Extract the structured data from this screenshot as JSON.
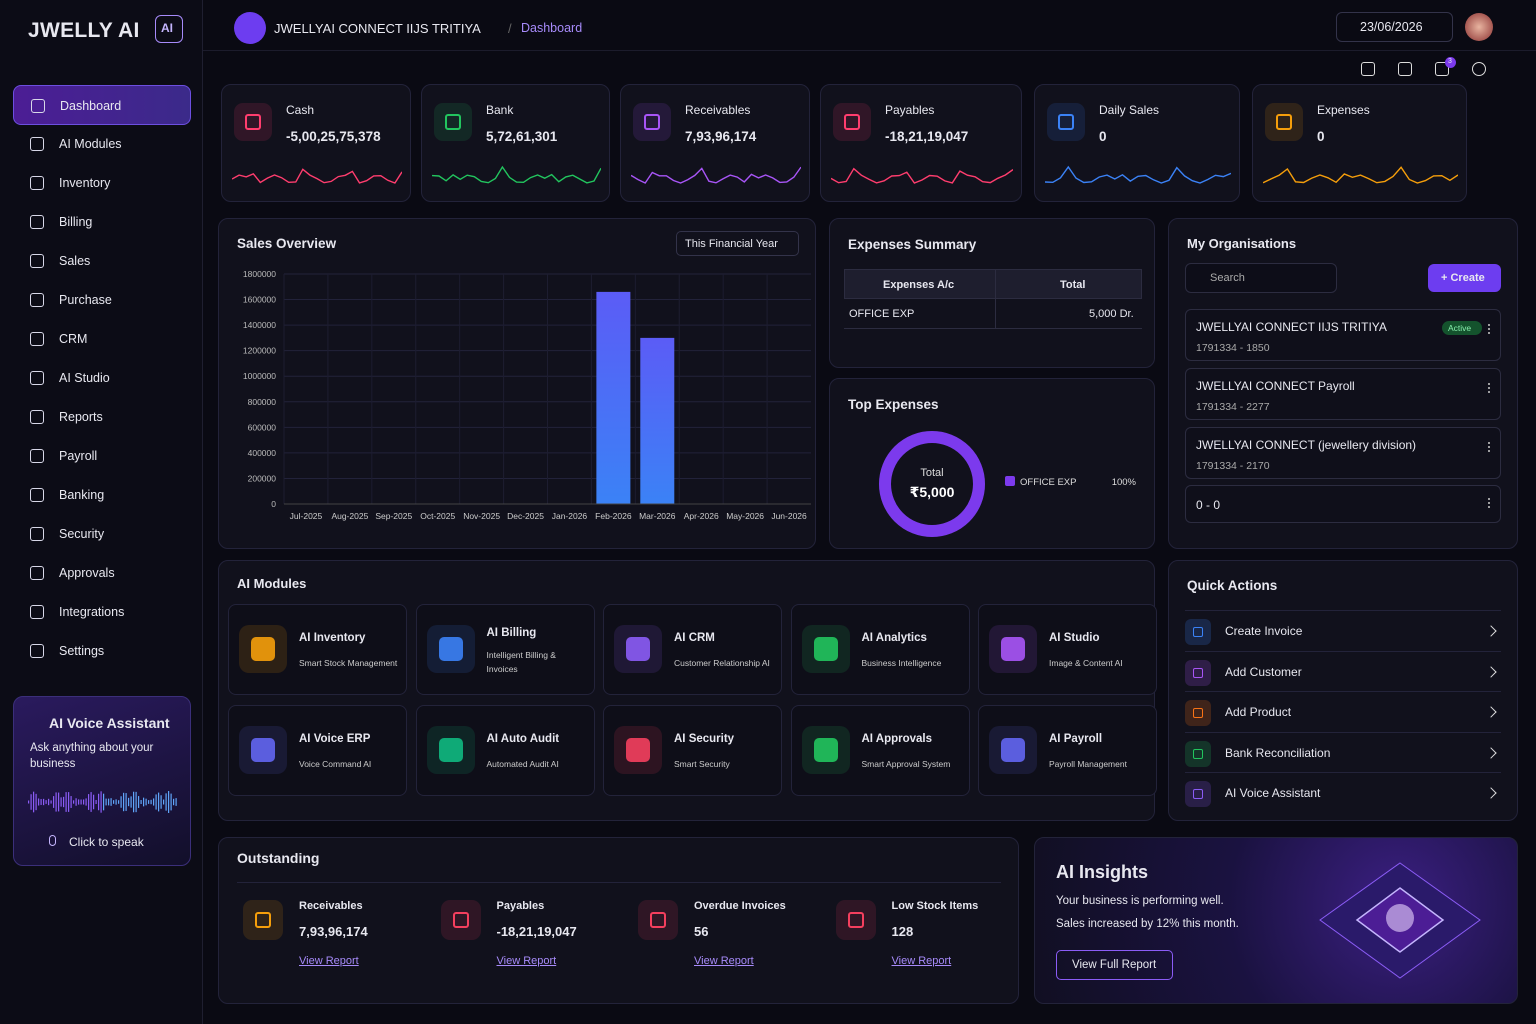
{
  "brand": {
    "name": "JWELLY AI",
    "badge": "AI"
  },
  "header": {
    "org": "JWELLYAI CONNECT IIJS TRITIYA",
    "separator": "/",
    "breadcrumb": "Dashboard",
    "date": "23/06/2026",
    "notifications": "3"
  },
  "sidebar": {
    "items": [
      "Dashboard",
      "AI Modules",
      "Inventory",
      "Billing",
      "Sales",
      "Purchase",
      "CRM",
      "AI Studio",
      "Reports",
      "Payroll",
      "Banking",
      "Security",
      "Approvals",
      "Integrations",
      "Settings"
    ]
  },
  "stats": [
    {
      "label": "Cash",
      "value": "-5,00,25,75,378",
      "color": "#ff3d6e"
    },
    {
      "label": "Bank",
      "value": "5,72,61,301",
      "color": "#22c55e"
    },
    {
      "label": "Receivables",
      "value": "7,93,96,174",
      "color": "#a855f7"
    },
    {
      "label": "Payables",
      "value": "-18,21,19,047",
      "color": "#ff3d6e"
    },
    {
      "label": "Daily Sales",
      "value": "0",
      "color": "#3b82f6"
    },
    {
      "label": "Expenses",
      "value": "0",
      "color": "#f59e0b"
    }
  ],
  "chart_data": [
    {
      "type": "bar",
      "title": "Sales Overview",
      "filter": "This Financial Year",
      "categories": [
        "Jul-2025",
        "Aug-2025",
        "Sep-2025",
        "Oct-2025",
        "Nov-2025",
        "Dec-2025",
        "Jan-2026",
        "Feb-2026",
        "Mar-2026",
        "Apr-2026",
        "May-2026",
        "Jun-2026"
      ],
      "values": [
        0,
        0,
        0,
        0,
        0,
        0,
        0,
        1660000,
        1300000,
        0,
        0,
        0
      ],
      "color": "#5b5cf6",
      "ylim": [
        0,
        1800000
      ],
      "yticks": [
        0,
        200000,
        400000,
        600000,
        800000,
        1000000,
        1200000,
        1400000,
        1600000,
        1800000
      ],
      "grid": true
    },
    {
      "type": "pie",
      "title": "Top Expenses",
      "center_label": "Total",
      "center_value": "₹5,000",
      "categories": [
        "OFFICE EXP"
      ],
      "values": [
        100
      ],
      "value_labels": [
        "100%"
      ],
      "colors": [
        "#7c3aed"
      ]
    }
  ],
  "expenses_summary": {
    "title": "Expenses Summary",
    "columns": [
      "Expenses A/c",
      "Total"
    ],
    "rows": [
      [
        "OFFICE EXP",
        "5,000 Dr."
      ]
    ]
  },
  "organisations": {
    "title": "My Organisations",
    "search": "Search",
    "create": "+ Create",
    "items": [
      {
        "name": "JWELLYAI CONNECT IIJS TRITIYA",
        "code": "1791334 - 1850",
        "status": "Active"
      },
      {
        "name": "JWELLYAI CONNECT Payroll",
        "code": "1791334 - 2277"
      },
      {
        "name": "JWELLYAI CONNECT (jewellery division)",
        "code": "1791334 - 2170"
      },
      {
        "name": "0 - 0"
      }
    ]
  },
  "ai_modules": {
    "title": "AI Modules",
    "items": [
      {
        "name": "AI Inventory",
        "desc": "Smart Stock Management",
        "color": "#f59e0b"
      },
      {
        "name": "AI Billing",
        "desc": "Intelligent Billing & Invoices",
        "color": "#3b82f6"
      },
      {
        "name": "AI CRM",
        "desc": "Customer Relationship AI",
        "color": "#8b5cf6"
      },
      {
        "name": "AI Analytics",
        "desc": "Business Intelligence",
        "color": "#22c55e"
      },
      {
        "name": "AI Studio",
        "desc": "Image & Content AI",
        "color": "#a855f7"
      },
      {
        "name": "AI Voice ERP",
        "desc": "Voice Command AI",
        "color": "#6366f1"
      },
      {
        "name": "AI Auto Audit",
        "desc": "Automated Audit AI",
        "color": "#10b981"
      },
      {
        "name": "AI Security",
        "desc": "Smart Security",
        "color": "#f43f5e"
      },
      {
        "name": "AI Approvals",
        "desc": "Smart Approval System",
        "color": "#22c55e"
      },
      {
        "name": "AI Payroll",
        "desc": "Payroll Management",
        "color": "#6366f1"
      }
    ]
  },
  "quick_actions": {
    "title": "Quick Actions",
    "items": [
      {
        "name": "Create Invoice",
        "color": "#3b82f6"
      },
      {
        "name": "Add Customer",
        "color": "#a855f7"
      },
      {
        "name": "Add Product",
        "color": "#f97316"
      },
      {
        "name": "Bank Reconciliation",
        "color": "#22c55e"
      },
      {
        "name": "AI Voice Assistant",
        "color": "#8b5cf6"
      }
    ]
  },
  "outstanding": {
    "title": "Outstanding",
    "items": [
      {
        "label": "Receivables",
        "value": "7,93,96,174",
        "link": "View Report",
        "color": "#f59e0b"
      },
      {
        "label": "Payables",
        "value": "-18,21,19,047",
        "link": "View Report",
        "color": "#f43f5e"
      },
      {
        "label": "Overdue Invoices",
        "value": "56",
        "link": "View Report",
        "color": "#f43f5e"
      },
      {
        "label": "Low Stock Items",
        "value": "128",
        "link": "View Report",
        "color": "#f43f5e"
      }
    ]
  },
  "ai_insights": {
    "title": "AI Insights",
    "lines": [
      "Your business is performing well.",
      "Sales increased by 12% this month."
    ],
    "button": "View Full Report"
  },
  "voice_assistant": {
    "title": "AI Voice Assistant",
    "text": "Ask anything about your business",
    "button": "Click to speak"
  }
}
